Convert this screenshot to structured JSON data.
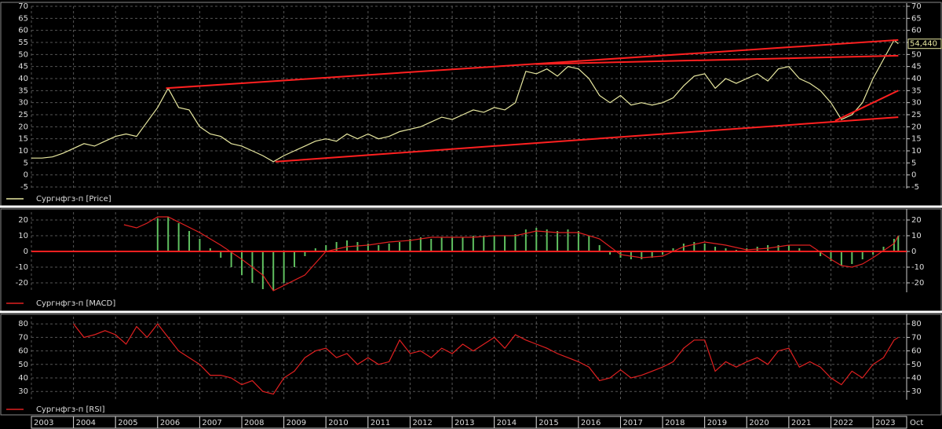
{
  "x_axis": {
    "xlim": [
      2003,
      2023.8
    ],
    "xticks": [
      2003,
      2004,
      2005,
      2006,
      2007,
      2008,
      2009,
      2010,
      2011,
      2012,
      2013,
      2014,
      2015,
      2016,
      2017,
      2018,
      2019,
      2020,
      2021,
      2022,
      2023
    ],
    "end_label": "Oct"
  },
  "chart_data": [
    {
      "type": "line",
      "legend": "Сургнфгз-п [Price]",
      "color": "#e8e8a0",
      "ylim": [
        -5,
        70
      ],
      "yticks": [
        -5,
        0,
        5,
        10,
        15,
        20,
        25,
        30,
        35,
        40,
        45,
        50,
        55,
        60,
        65,
        70
      ],
      "grid": true,
      "x": [
        2003,
        2003.25,
        2003.5,
        2003.75,
        2004,
        2004.25,
        2004.5,
        2004.75,
        2005,
        2005.25,
        2005.5,
        2005.75,
        2006,
        2006.25,
        2006.5,
        2006.75,
        2007,
        2007.25,
        2007.5,
        2007.75,
        2008,
        2008.25,
        2008.5,
        2008.75,
        2009,
        2009.25,
        2009.5,
        2009.75,
        2010,
        2010.25,
        2010.5,
        2010.75,
        2011,
        2011.25,
        2011.5,
        2011.75,
        2012,
        2012.25,
        2012.5,
        2012.75,
        2013,
        2013.25,
        2013.5,
        2013.75,
        2014,
        2014.25,
        2014.5,
        2014.75,
        2015,
        2015.25,
        2015.5,
        2015.75,
        2016,
        2016.25,
        2016.5,
        2016.75,
        2017,
        2017.25,
        2017.5,
        2017.75,
        2018,
        2018.25,
        2018.5,
        2018.75,
        2019,
        2019.25,
        2019.5,
        2019.75,
        2020,
        2020.25,
        2020.5,
        2020.75,
        2021,
        2021.25,
        2021.5,
        2021.75,
        2022,
        2022.25,
        2022.5,
        2022.75,
        2023,
        2023.25,
        2023.5,
        2023.6
      ],
      "values": [
        7,
        7,
        7.5,
        9,
        11,
        13,
        12,
        14,
        16,
        17,
        16,
        22,
        28,
        36,
        28,
        27,
        20,
        17,
        16,
        13,
        12,
        10,
        8,
        5.5,
        8,
        10,
        12,
        14,
        15,
        14,
        17,
        15,
        17,
        15,
        16,
        18,
        19,
        20,
        22,
        24,
        23,
        25,
        27,
        26,
        28,
        27,
        30,
        43,
        42,
        44,
        41,
        45,
        44,
        40,
        33,
        30,
        33,
        29,
        30,
        29,
        30,
        32,
        37,
        41,
        42,
        36,
        40,
        38,
        40,
        42,
        39,
        44,
        45,
        40,
        38,
        35,
        30,
        23,
        25,
        30,
        40,
        48,
        56,
        54.44
      ],
      "last_value_label": "54,440",
      "trendlines": [
        {
          "color": "#ff2020",
          "x": [
            2006.2,
            2023.6
          ],
          "values": [
            36,
            56
          ]
        },
        {
          "color": "#ff2020",
          "x": [
            2015,
            2023.6
          ],
          "values": [
            46,
            49.5
          ]
        },
        {
          "color": "#ff2020",
          "x": [
            2008.8,
            2023.6
          ],
          "values": [
            5.5,
            24
          ]
        },
        {
          "color": "#ff2020",
          "x": [
            2022.1,
            2023.6
          ],
          "values": [
            22.5,
            35
          ]
        }
      ]
    },
    {
      "type": "macd",
      "legend": "Сургнфгз-п [MACD]",
      "ylim": [
        -25,
        25
      ],
      "yticks": [
        -20,
        -10,
        0,
        10,
        20
      ],
      "grid": true,
      "reference_line": 0,
      "reference_color": "#ff2020",
      "histogram": {
        "color": "#60c060",
        "x": [
          2006,
          2006.25,
          2006.5,
          2006.75,
          2007,
          2007.25,
          2007.5,
          2007.75,
          2008,
          2008.25,
          2008.5,
          2008.75,
          2009,
          2009.25,
          2009.5,
          2009.75,
          2010,
          2010.25,
          2010.5,
          2010.75,
          2011,
          2011.25,
          2011.5,
          2011.75,
          2012,
          2012.25,
          2012.5,
          2012.75,
          2013,
          2013.25,
          2013.5,
          2013.75,
          2014,
          2014.25,
          2014.5,
          2014.75,
          2015,
          2015.25,
          2015.5,
          2015.75,
          2016,
          2016.25,
          2016.5,
          2016.75,
          2017,
          2017.25,
          2017.5,
          2017.75,
          2018,
          2018.25,
          2018.5,
          2018.75,
          2019,
          2019.25,
          2019.5,
          2019.75,
          2020,
          2020.25,
          2020.5,
          2020.75,
          2021,
          2021.25,
          2021.5,
          2021.75,
          2022,
          2022.25,
          2022.5,
          2022.75,
          2023,
          2023.25,
          2023.5,
          2023.6
        ],
        "values": [
          21,
          22,
          18,
          13,
          8,
          2,
          -4,
          -10,
          -15,
          -20,
          -24,
          -25,
          -20,
          -10,
          -3,
          2,
          4,
          6,
          7,
          6,
          5,
          4,
          5,
          6,
          8,
          9,
          8,
          9,
          9,
          9,
          10,
          10,
          10,
          10,
          11,
          14,
          15,
          14,
          13,
          14,
          13,
          10,
          4,
          -2,
          -4,
          -5,
          -5,
          -4,
          -2,
          2,
          5,
          6,
          5,
          3,
          2,
          1,
          2,
          3,
          4,
          4,
          4,
          2,
          0,
          -3,
          -6,
          -9,
          -8,
          -5,
          -2,
          3,
          8,
          10
        ]
      },
      "line": {
        "color": "#e02020",
        "x": [
          2005.2,
          2005.5,
          2005.75,
          2006,
          2006.25,
          2007,
          2007.5,
          2008,
          2008.5,
          2008.75,
          2009.5,
          2010,
          2010.5,
          2011,
          2011.5,
          2012,
          2012.5,
          2013,
          2013.5,
          2014,
          2014.5,
          2015,
          2015.5,
          2016,
          2016.5,
          2017,
          2017.5,
          2018,
          2018.5,
          2019,
          2019.5,
          2020,
          2020.5,
          2021,
          2021.5,
          2022,
          2022.25,
          2022.5,
          2022.75,
          2023,
          2023.5,
          2023.6
        ],
        "values": [
          17,
          15,
          18,
          22,
          22,
          12,
          4,
          -5,
          -15,
          -25,
          -15,
          0,
          3,
          4,
          6,
          7,
          9,
          9,
          9,
          10,
          10,
          13,
          12,
          12,
          8,
          -2,
          -4,
          -3,
          3,
          6,
          4,
          1,
          2,
          4,
          4,
          -5,
          -9,
          -10,
          -8,
          -4,
          5,
          10
        ]
      }
    },
    {
      "type": "line",
      "legend": "Сургнфгз-п [RSI]",
      "color": "#e02020",
      "ylim": [
        25,
        85
      ],
      "yticks": [
        30,
        40,
        50,
        60,
        70,
        80
      ],
      "grid": true,
      "x": [
        2004,
        2004.25,
        2004.5,
        2004.75,
        2005,
        2005.25,
        2005.5,
        2005.75,
        2006,
        2006.25,
        2006.5,
        2006.75,
        2007,
        2007.25,
        2007.5,
        2007.75,
        2008,
        2008.25,
        2008.5,
        2008.75,
        2009,
        2009.25,
        2009.5,
        2009.75,
        2010,
        2010.25,
        2010.5,
        2010.75,
        2011,
        2011.25,
        2011.5,
        2011.75,
        2012,
        2012.25,
        2012.5,
        2012.75,
        2013,
        2013.25,
        2013.5,
        2013.75,
        2014,
        2014.25,
        2014.5,
        2014.75,
        2015,
        2015.25,
        2015.5,
        2015.75,
        2016,
        2016.25,
        2016.5,
        2016.75,
        2017,
        2017.25,
        2017.5,
        2017.75,
        2018,
        2018.25,
        2018.5,
        2018.75,
        2019,
        2019.25,
        2019.5,
        2019.75,
        2020,
        2020.25,
        2020.5,
        2020.75,
        2021,
        2021.25,
        2021.5,
        2021.75,
        2022,
        2022.25,
        2022.5,
        2022.75,
        2023,
        2023.25,
        2023.5,
        2023.6
      ],
      "values": [
        80,
        70,
        72,
        75,
        72,
        65,
        78,
        70,
        80,
        70,
        60,
        55,
        50,
        42,
        42,
        40,
        35,
        38,
        30,
        28,
        40,
        45,
        55,
        60,
        62,
        55,
        58,
        50,
        55,
        50,
        52,
        68,
        58,
        60,
        55,
        62,
        58,
        65,
        60,
        65,
        70,
        62,
        72,
        68,
        65,
        62,
        58,
        55,
        52,
        48,
        38,
        40,
        46,
        40,
        42,
        45,
        48,
        52,
        62,
        68,
        68,
        45,
        52,
        48,
        52,
        55,
        50,
        60,
        62,
        48,
        52,
        48,
        40,
        35,
        45,
        40,
        50,
        55,
        68,
        70
      ]
    }
  ]
}
